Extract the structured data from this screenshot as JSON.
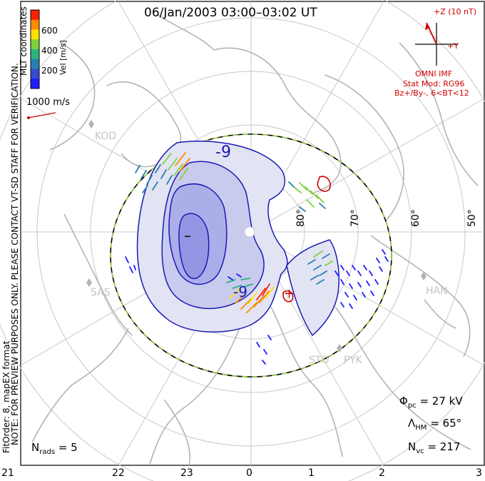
{
  "title": "06/Jan/2003 03:00–03:02 UT",
  "side_text": {
    "line1": "NOTE: FOR PREVIEW PURPOSES ONLY. PLEASE CONTACT VT-SD STAFF FOR VERIFICATION.",
    "line2": "FitOrder: 8, mapEX format",
    "coords": "MLT coordinates"
  },
  "colorbar": {
    "label": "Vel [m/s]",
    "ticks": [
      "600",
      "400",
      "200"
    ],
    "colors": [
      "#ff2000",
      "#ff8a00",
      "#ffe000",
      "#7fd23c",
      "#2ab47c",
      "#2a7fb0",
      "#3a4ad0",
      "#1d1dff"
    ]
  },
  "scale_vector": {
    "label": "1000 m/s"
  },
  "imf": {
    "bz_label": "+Z (10 nT)",
    "by_label": "+Y",
    "source": "OMNI IMF",
    "model": "Stat Mod: RG96",
    "condition": "Bz+/By-, 6<BT<12"
  },
  "contours": {
    "min_label": "–",
    "max_label": "+",
    "level_label_top": "-9",
    "level_label_mid": "-9"
  },
  "latitudes": [
    "80°",
    "70°",
    "60°",
    "50°"
  ],
  "stations": [
    "KOD",
    "SAS",
    "HAN",
    "STO",
    "PYK"
  ],
  "stats": {
    "phi_pc": "= 27 kV",
    "lambda_hm": "= 65°",
    "n_vc": "= 217",
    "n_rads": "= 5"
  },
  "mlt_hours": [
    "21",
    "22",
    "23",
    "0",
    "1",
    "2",
    "3"
  ]
}
